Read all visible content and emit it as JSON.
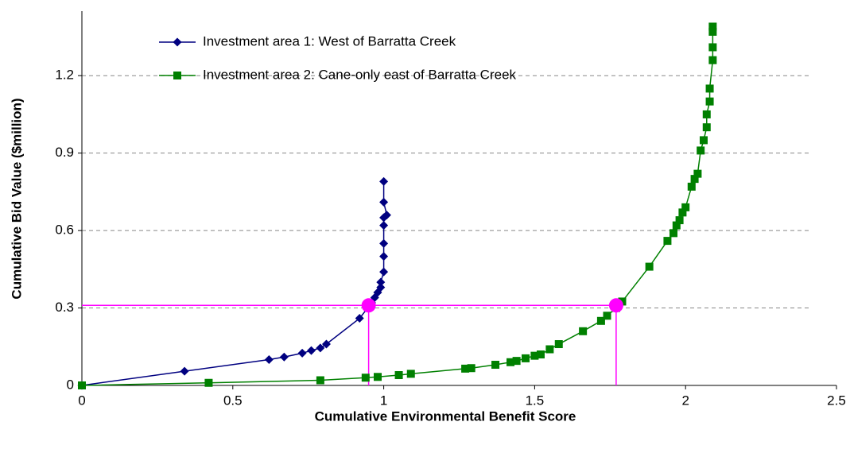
{
  "chart_data": {
    "type": "line",
    "x_label": "Cumulative Environmental Benefit Score",
    "y_label": "Cumulative Bid Value ($million)",
    "xlim": [
      0,
      2.5
    ],
    "xticks": [
      0,
      0.5,
      1,
      1.5,
      2,
      2.5
    ],
    "ylim": [
      0,
      1.45
    ],
    "yticks": [
      0,
      0.3,
      0.6,
      0.9,
      1.2
    ],
    "grid": true,
    "legend": "upper left",
    "series": [
      {
        "name": "Investment area 1: West of Barratta Creek",
        "color": "#000080",
        "marker": "diamond",
        "x": [
          0,
          0.34,
          0.62,
          0.67,
          0.73,
          0.76,
          0.79,
          0.81,
          0.92,
          0.96,
          0.97,
          0.98,
          0.99,
          0.99,
          1.0,
          1.0,
          1.0,
          1.0,
          1.0,
          1.01,
          1.0,
          1.0
        ],
        "values": [
          0,
          0.055,
          0.1,
          0.11,
          0.125,
          0.135,
          0.145,
          0.16,
          0.26,
          0.32,
          0.34,
          0.36,
          0.38,
          0.4,
          0.44,
          0.5,
          0.55,
          0.62,
          0.65,
          0.66,
          0.71,
          0.79
        ]
      },
      {
        "name": "Investment area 2: Cane-only east of Barratta Creek",
        "color": "#008000",
        "marker": "square",
        "x": [
          0,
          0.42,
          0.79,
          0.94,
          0.98,
          1.05,
          1.09,
          1.27,
          1.29,
          1.37,
          1.42,
          1.44,
          1.47,
          1.5,
          1.52,
          1.55,
          1.58,
          1.66,
          1.72,
          1.74,
          1.77,
          1.79,
          1.88,
          1.94,
          1.96,
          1.97,
          1.98,
          1.99,
          2.0,
          2.02,
          2.03,
          2.04,
          2.05,
          2.06,
          2.07,
          2.07,
          2.08,
          2.08,
          2.09,
          2.09,
          2.09,
          2.09
        ],
        "values": [
          0,
          0.01,
          0.02,
          0.03,
          0.033,
          0.04,
          0.045,
          0.065,
          0.067,
          0.08,
          0.09,
          0.095,
          0.105,
          0.115,
          0.12,
          0.14,
          0.16,
          0.21,
          0.25,
          0.27,
          0.3,
          0.325,
          0.46,
          0.56,
          0.59,
          0.62,
          0.64,
          0.67,
          0.69,
          0.77,
          0.8,
          0.82,
          0.91,
          0.95,
          1.0,
          1.05,
          1.1,
          1.15,
          1.26,
          1.31,
          1.37,
          1.39
        ]
      }
    ],
    "highlights": {
      "color": "#ff00ff",
      "x": [
        0.95,
        1.77
      ],
      "y": [
        0.31,
        0.31
      ]
    }
  }
}
